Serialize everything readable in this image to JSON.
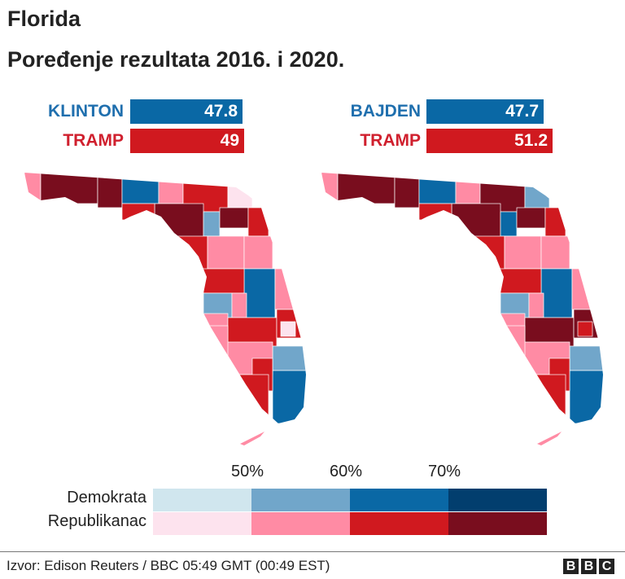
{
  "title": "Florida",
  "subtitle": "Poređenje rezultata 2016. i 2020.",
  "results": [
    {
      "year": "2016",
      "dem": {
        "name": "KLINTON",
        "value": "47.8"
      },
      "rep": {
        "name": "TRAMP",
        "value": "49"
      }
    },
    {
      "year": "2020",
      "dem": {
        "name": "BAJDEN",
        "value": "47.7"
      },
      "rep": {
        "name": "TRAMP",
        "value": "51.2"
      }
    }
  ],
  "colors": {
    "dem_label": "#1f6fae",
    "rep_label": "#d0202e",
    "dem_bar": "#0a68a5",
    "rep_bar": "#d0191f"
  },
  "legend": {
    "ticks": [
      "50%",
      "60%",
      "70%"
    ],
    "dem_label": "Demokrata",
    "rep_label": "Republikanac",
    "dem_colors": [
      "#d0e6ee",
      "#71a6ca",
      "#0a68a5",
      "#023e6e"
    ],
    "rep_colors": [
      "#fde3ee",
      "#ff8ba4",
      "#d0191f",
      "#790d1e"
    ]
  },
  "maps": [
    {
      "counties": [
        "R1",
        "R3",
        "R3",
        "D2",
        "R1",
        "R2",
        "R0",
        "R3",
        "D1",
        "R3",
        "R2",
        "R2",
        "R2",
        "R1",
        "R1",
        "D2",
        "R2",
        "D1",
        "R1",
        "R1",
        "R1",
        "R2",
        "R2",
        "R0",
        "D1",
        "D2",
        "R1",
        "R2",
        "R2",
        "R1"
      ]
    },
    {
      "counties": [
        "R1",
        "R3",
        "R3",
        "D2",
        "R1",
        "R3",
        "D1",
        "R3",
        "D2",
        "R3",
        "R2",
        "R2",
        "R2",
        "R1",
        "R1",
        "D2",
        "R2",
        "D1",
        "R1",
        "R1",
        "R1",
        "R3",
        "R3",
        "R2",
        "D1",
        "D2",
        "R1",
        "R2",
        "R2",
        "R1"
      ]
    }
  ],
  "footer": {
    "source": "Izvor: Edison Reuters / BBC 05:49 GMT (00:49 EST)",
    "logo": "BBC"
  }
}
